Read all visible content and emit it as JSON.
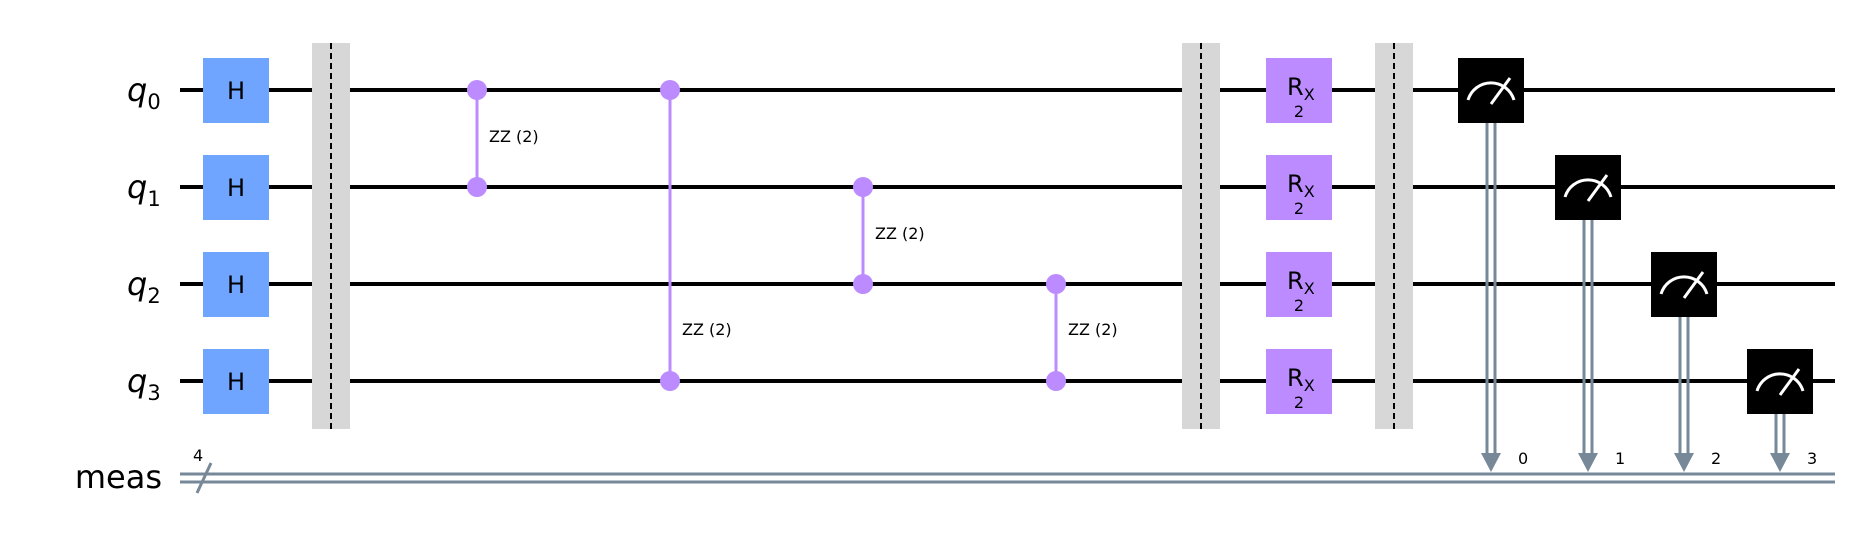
{
  "qubits": [
    {
      "name": "q",
      "index": "0"
    },
    {
      "name": "q",
      "index": "1"
    },
    {
      "name": "q",
      "index": "2"
    },
    {
      "name": "q",
      "index": "3"
    }
  ],
  "classical_register": {
    "label": "meas",
    "width": "4",
    "bits": [
      "0",
      "1",
      "2",
      "3"
    ]
  },
  "gates": {
    "h": {
      "label": "H"
    },
    "rx": {
      "label": "R",
      "sub": "X",
      "param": "2"
    },
    "zz": {
      "label": "ZZ (2)"
    }
  },
  "zz_pairs": [
    [
      0,
      1
    ],
    [
      0,
      3
    ],
    [
      1,
      2
    ],
    [
      2,
      3
    ]
  ],
  "colors": {
    "h_gate": "#6fa4ff",
    "rx_gate": "#bb8bff",
    "zz_gate": "#bb8bff",
    "measure": "#000000",
    "barrier": "#d7d7d7",
    "classical_wire": "#778899",
    "wire": "#000000"
  }
}
